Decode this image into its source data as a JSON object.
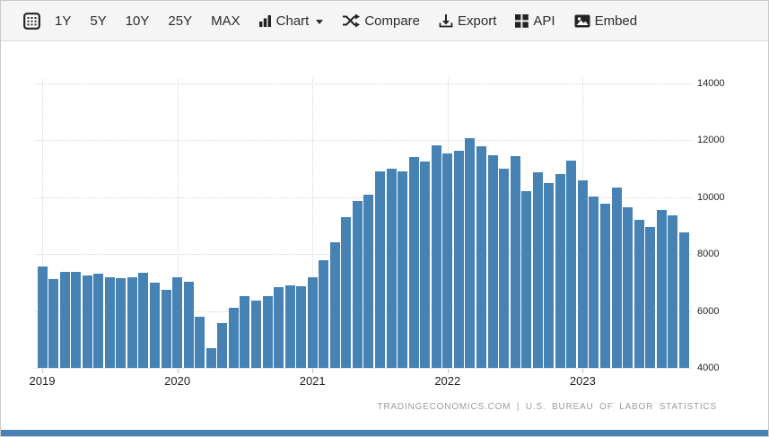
{
  "toolbar": {
    "ranges": [
      "1Y",
      "5Y",
      "10Y",
      "25Y",
      "MAX"
    ],
    "chart_label": "Chart",
    "compare_label": "Compare",
    "export_label": "Export",
    "api_label": "API",
    "embed_label": "Embed"
  },
  "attribution": {
    "text": "TRADINGECONOMICS.COM | U.S. BUREAU OF LABOR STATISTICS"
  },
  "colors": {
    "bar": "#4682B4",
    "bottom_strip": "#4682B4",
    "toolbar_bg": "#f5f5f5",
    "grid": "#d6d6d6",
    "axis_text": "#222222",
    "attribution_text": "#9b9b9b"
  },
  "chart_data": {
    "type": "bar",
    "title": "",
    "xlabel": "",
    "ylabel": "",
    "ylim": [
      4000,
      14000
    ],
    "yticks": [
      4000,
      6000,
      8000,
      10000,
      12000,
      14000
    ],
    "year_ticks": [
      "2019",
      "2020",
      "2021",
      "2022",
      "2023"
    ],
    "grid": "dotted",
    "y_axis_position": "right",
    "legend": "none",
    "x": [
      "2019-01",
      "2019-02",
      "2019-03",
      "2019-04",
      "2019-05",
      "2019-06",
      "2019-07",
      "2019-08",
      "2019-09",
      "2019-10",
      "2019-11",
      "2019-12",
      "2020-01",
      "2020-02",
      "2020-03",
      "2020-04",
      "2020-05",
      "2020-06",
      "2020-07",
      "2020-08",
      "2020-09",
      "2020-10",
      "2020-11",
      "2020-12",
      "2021-01",
      "2021-02",
      "2021-03",
      "2021-04",
      "2021-05",
      "2021-06",
      "2021-07",
      "2021-08",
      "2021-09",
      "2021-10",
      "2021-11",
      "2021-12",
      "2022-01",
      "2022-02",
      "2022-03",
      "2022-04",
      "2022-05",
      "2022-06",
      "2022-07",
      "2022-08",
      "2022-09",
      "2022-10",
      "2022-11",
      "2022-12",
      "2023-01",
      "2023-02",
      "2023-03",
      "2023-04",
      "2023-05",
      "2023-06",
      "2023-07",
      "2023-08",
      "2023-09",
      "2023-10"
    ],
    "values": [
      7560,
      7120,
      7370,
      7390,
      7240,
      7310,
      7190,
      7150,
      7190,
      7350,
      6990,
      6730,
      7190,
      7020,
      5810,
      4690,
      5580,
      6120,
      6520,
      6380,
      6510,
      6840,
      6910,
      6880,
      7190,
      7780,
      8410,
      9300,
      9870,
      10080,
      10900,
      11010,
      10900,
      11410,
      11250,
      11830,
      11540,
      11640,
      12080,
      11790,
      11470,
      11010,
      11430,
      10230,
      10880,
      10500,
      10800,
      11280,
      10590,
      10010,
      9780,
      10340,
      9640,
      9200,
      8960,
      9540,
      9350,
      8750
    ]
  }
}
